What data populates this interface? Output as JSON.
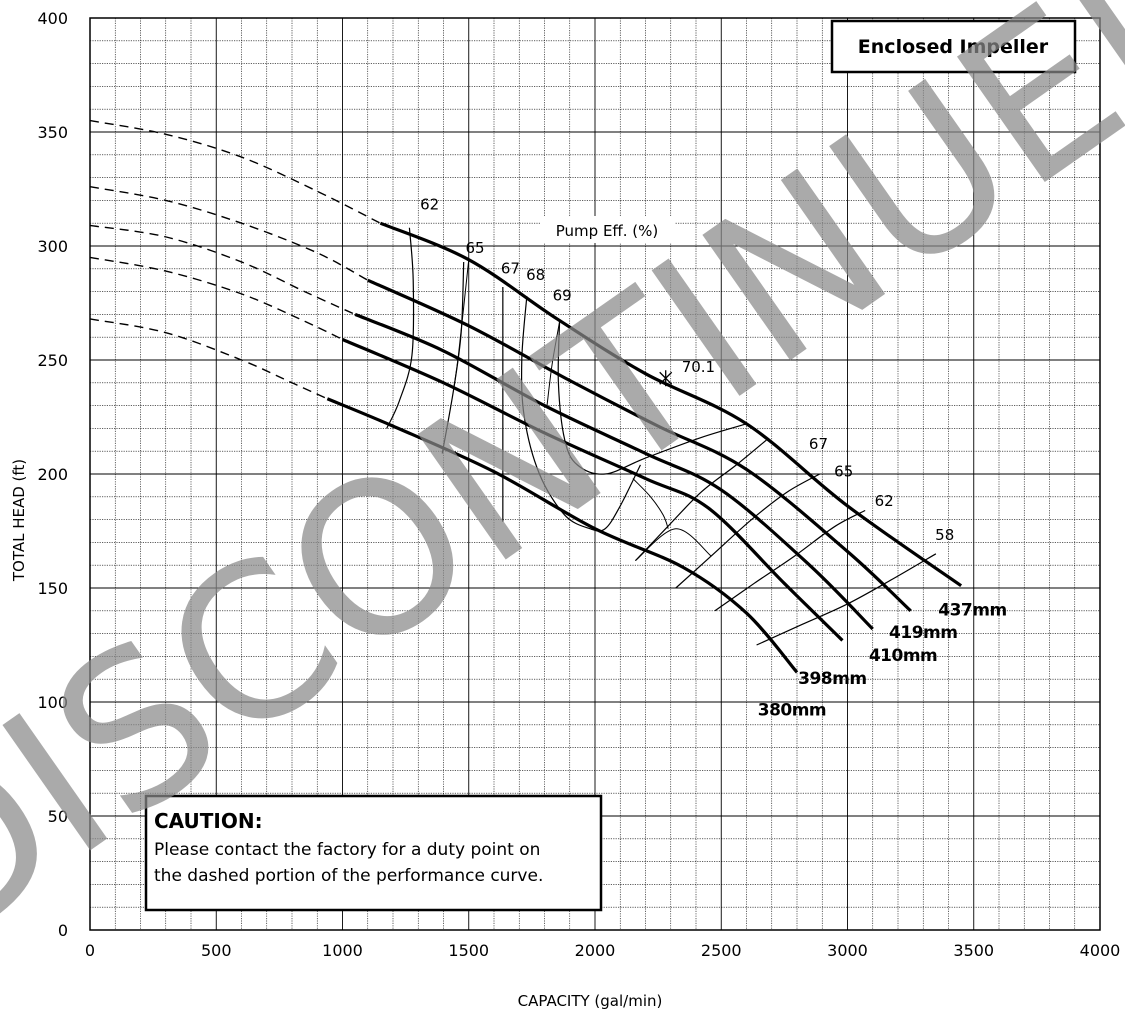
{
  "chart_data": {
    "type": "line",
    "title": "",
    "xlabel": "CAPACITY (gal/min)",
    "ylabel": "TOTAL HEAD (ft)",
    "xlim": [
      0,
      4000
    ],
    "ylim": [
      0,
      400
    ],
    "x_ticks": [
      0,
      500,
      1000,
      1500,
      2000,
      2500,
      3000,
      3500,
      4000
    ],
    "y_ticks": [
      0,
      50,
      100,
      150,
      200,
      250,
      300,
      350,
      400
    ],
    "grid": true,
    "impeller_box": "Enclosed Impeller",
    "eff_title": "Pump Eff. (%)",
    "bep_label": "70.1",
    "bep_point": [
      2280,
      242
    ],
    "watermark": "DISCONTINUED",
    "caution": {
      "title": "CAUTION:",
      "line1": "Please contact the factory for a duty point on",
      "line2": "the dashed portion of the performance curve."
    },
    "series": [
      {
        "name": "437mm",
        "dashed": [
          [
            0,
            355
          ],
          [
            300,
            349
          ],
          [
            600,
            339
          ],
          [
            900,
            324
          ],
          [
            1150,
            310
          ]
        ],
        "solid": [
          [
            1150,
            310
          ],
          [
            1500,
            294
          ],
          [
            1850,
            268
          ],
          [
            2200,
            244
          ],
          [
            2600,
            222
          ],
          [
            3000,
            186
          ],
          [
            3450,
            151
          ]
        ]
      },
      {
        "name": "419mm",
        "dashed": [
          [
            0,
            326
          ],
          [
            300,
            320
          ],
          [
            600,
            310
          ],
          [
            900,
            297
          ],
          [
            1100,
            285
          ]
        ],
        "solid": [
          [
            1100,
            285
          ],
          [
            1500,
            265
          ],
          [
            1900,
            241
          ],
          [
            2250,
            221
          ],
          [
            2600,
            202
          ],
          [
            3000,
            166
          ],
          [
            3250,
            140
          ]
        ]
      },
      {
        "name": "410mm",
        "dashed": [
          [
            0,
            309
          ],
          [
            300,
            304
          ],
          [
            600,
            293
          ],
          [
            850,
            280
          ],
          [
            1050,
            270
          ]
        ],
        "solid": [
          [
            1050,
            270
          ],
          [
            1400,
            254
          ],
          [
            1800,
            230
          ],
          [
            2200,
            209
          ],
          [
            2500,
            193
          ],
          [
            2850,
            160
          ],
          [
            3100,
            132
          ]
        ]
      },
      {
        "name": "398mm",
        "dashed": [
          [
            0,
            295
          ],
          [
            300,
            289
          ],
          [
            600,
            279
          ],
          [
            850,
            267
          ],
          [
            1000,
            259
          ]
        ],
        "solid": [
          [
            1000,
            259
          ],
          [
            1400,
            240
          ],
          [
            1800,
            218
          ],
          [
            2200,
            198
          ],
          [
            2450,
            185
          ],
          [
            2750,
            152
          ],
          [
            2980,
            127
          ]
        ]
      },
      {
        "name": "380mm",
        "dashed": [
          [
            0,
            268
          ],
          [
            300,
            262
          ],
          [
            600,
            250
          ],
          [
            800,
            240
          ],
          [
            940,
            233
          ]
        ],
        "solid": [
          [
            940,
            233
          ],
          [
            1200,
            221
          ],
          [
            1600,
            201
          ],
          [
            2000,
            176
          ],
          [
            2350,
            159
          ],
          [
            2600,
            139
          ],
          [
            2800,
            113
          ]
        ]
      }
    ],
    "eff_contours": [
      {
        "label": "62",
        "label_at": [
          1345,
          316
        ],
        "points": [
          [
            1265,
            308
          ],
          [
            1280,
            285
          ],
          [
            1275,
            252
          ],
          [
            1225,
            232
          ],
          [
            1175,
            220
          ]
        ]
      },
      {
        "label": "65",
        "label_at": [
          1525,
          297
        ],
        "points": [
          [
            1480,
            293
          ],
          [
            1470,
            262
          ],
          [
            1440,
            237
          ],
          [
            1395,
            209
          ]
        ]
      },
      {
        "label": "67",
        "label_at": [
          1665,
          288
        ],
        "points": [
          [
            1635,
            282
          ],
          [
            1635,
            190
          ],
          [
            1635,
            180
          ]
        ]
      },
      {
        "label": "68",
        "label_at": [
          1765,
          285
        ],
        "points": [
          [
            1730,
            278
          ],
          [
            1710,
            250
          ],
          [
            1720,
            225
          ],
          [
            1780,
            200
          ],
          [
            1880,
            182
          ],
          [
            1980,
            176
          ],
          [
            2040,
            176
          ],
          [
            2100,
            186
          ],
          [
            2180,
            204
          ]
        ]
      },
      {
        "label": "69",
        "label_at": [
          1870,
          276
        ],
        "points": [
          [
            1860,
            268
          ],
          [
            1855,
            240
          ],
          [
            1880,
            215
          ],
          [
            1930,
            204
          ],
          [
            2040,
            200
          ],
          [
            2200,
            207
          ],
          [
            2420,
            216
          ],
          [
            2600,
            222
          ]
        ]
      },
      {
        "label": "67",
        "label_at": [
          2885,
          211
        ],
        "points": [
          [
            2160,
            162
          ],
          [
            2280,
            176
          ],
          [
            2420,
            192
          ],
          [
            2560,
            204
          ],
          [
            2680,
            215
          ]
        ]
      },
      {
        "label": "65",
        "label_at": [
          2985,
          199
        ],
        "points": [
          [
            2320,
            150
          ],
          [
            2460,
            164
          ],
          [
            2620,
            180
          ],
          [
            2760,
            192
          ],
          [
            2890,
            200
          ]
        ]
      },
      {
        "label": "62",
        "label_at": [
          3145,
          186
        ],
        "points": [
          [
            2475,
            140
          ],
          [
            2630,
            152
          ],
          [
            2790,
            164
          ],
          [
            2950,
            177
          ],
          [
            3070,
            184
          ]
        ]
      },
      {
        "label": "58",
        "label_at": [
          3385,
          171
        ],
        "points": [
          [
            2640,
            125
          ],
          [
            2820,
            134
          ],
          [
            3000,
            143
          ],
          [
            3180,
            154
          ],
          [
            3350,
            165
          ]
        ]
      }
    ],
    "iso_head_lines": [
      [
        [
          1500,
          294
        ],
        [
          1460,
          253
        ],
        [
          1440,
          237
        ]
      ],
      [
        [
          1860,
          267
        ],
        [
          1830,
          248
        ],
        [
          1810,
          230
        ]
      ],
      [
        [
          2150,
          198
        ],
        [
          2220,
          190
        ],
        [
          2270,
          182
        ],
        [
          2290,
          176
        ]
      ],
      [
        [
          2160,
          162
        ],
        [
          2320,
          176
        ],
        [
          2460,
          164
        ]
      ]
    ],
    "curve_label_positions": [
      {
        "name": "437mm",
        "at": [
          3495,
          138
        ]
      },
      {
        "name": "419mm",
        "at": [
          3300,
          128
        ]
      },
      {
        "name": "410mm",
        "at": [
          3220,
          118
        ]
      },
      {
        "name": "398mm",
        "at": [
          2940,
          108
        ]
      },
      {
        "name": "380mm",
        "at": [
          2780,
          94
        ]
      }
    ]
  }
}
